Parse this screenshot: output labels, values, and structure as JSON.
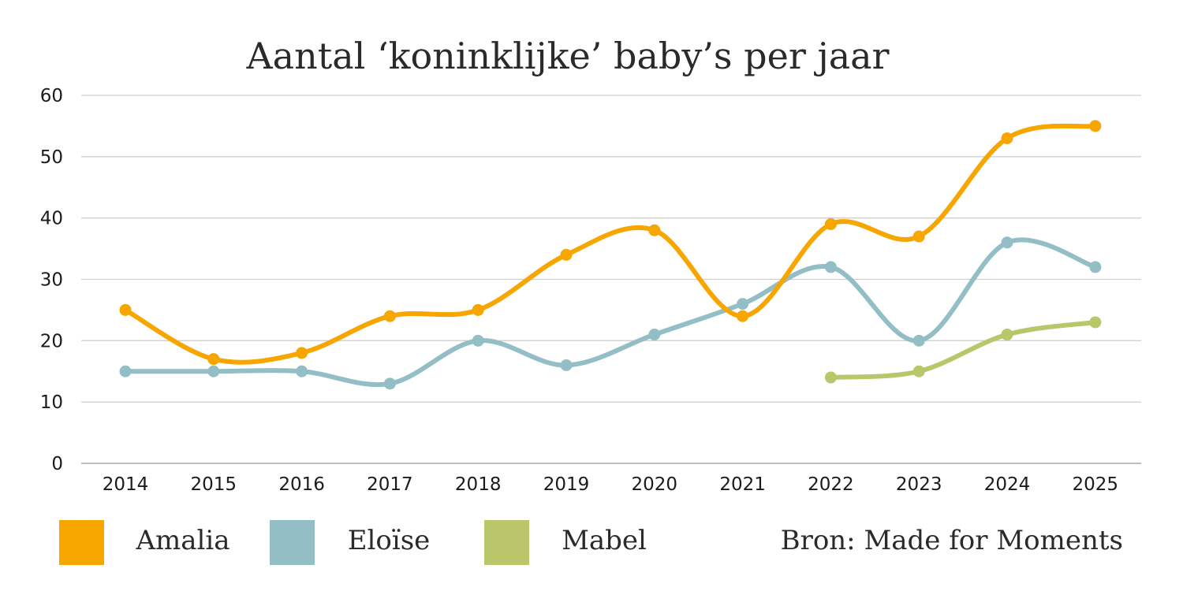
{
  "chart_data": {
    "type": "line",
    "title": "Aantal ‘koninklijke’ baby’s per jaar",
    "categories": [
      "2014",
      "2015",
      "2016",
      "2017",
      "2018",
      "2019",
      "2020",
      "2021",
      "2022",
      "2023",
      "2024",
      "2025"
    ],
    "ylim": [
      0,
      60
    ],
    "yticks": [
      "0",
      "10",
      "20",
      "30",
      "40",
      "50",
      "60"
    ],
    "grid": true,
    "smooth": true,
    "legend_position": "bottom",
    "series": [
      {
        "name": "Amalia",
        "color": "#F7A600",
        "values": [
          25,
          17,
          18,
          24,
          25,
          34,
          38,
          24,
          39,
          37,
          53,
          55
        ]
      },
      {
        "name": "Eloïse",
        "color": "#94BEC6",
        "values": [
          15,
          15,
          15,
          13,
          20,
          16,
          21,
          26,
          32,
          20,
          36,
          32
        ]
      },
      {
        "name": "Mabel",
        "color": "#B9C669",
        "values": [
          null,
          null,
          null,
          null,
          null,
          null,
          null,
          null,
          14,
          15,
          21,
          23
        ]
      }
    ],
    "source": "Bron: Made for Moments"
  }
}
